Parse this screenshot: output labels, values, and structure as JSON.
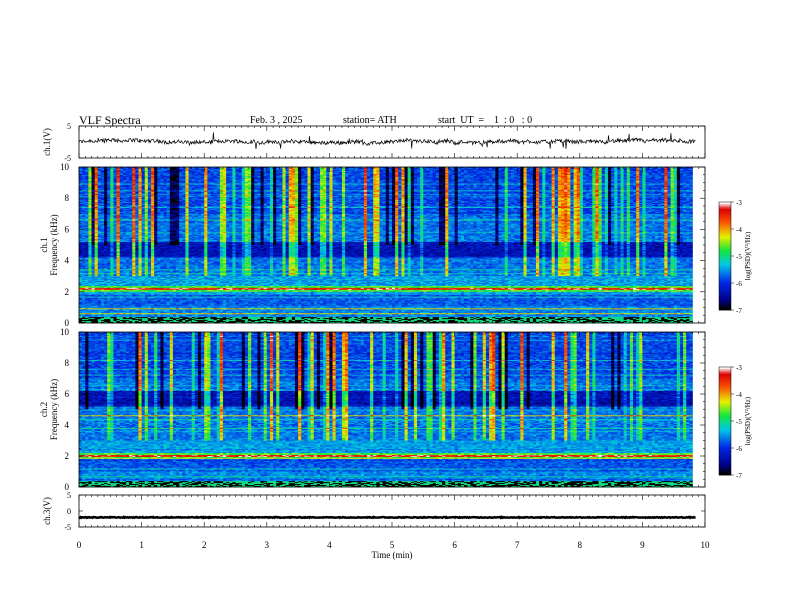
{
  "header": {
    "title": "VLF  Spectra",
    "date": "Feb. 3  , 2025",
    "station": "station= ATH",
    "start": "start  UT  =    1  : 0   : 0"
  },
  "chart_data": [
    {
      "type": "line",
      "name": "ch1-waveform",
      "ylabel": "ch.1(V)",
      "ylim": [
        -5,
        5
      ],
      "y_ticks": [
        "5",
        "-5"
      ],
      "xlim": [
        0,
        10
      ],
      "approx_level": 0,
      "approx_noise_amplitude": 1.2
    },
    {
      "type": "heatmap",
      "name": "ch1-spectrogram",
      "ylabel": "ch.1\nFrequency (kHz)",
      "ylabel_lines": [
        "ch.1",
        "Frequency  (kHz)"
      ],
      "ylim": [
        0,
        10
      ],
      "y_ticks": [
        "0",
        "2",
        "4",
        "6",
        "8",
        "10"
      ],
      "xlim": [
        0,
        9.8
      ],
      "colorbar": {
        "label": "log(PSD)(V²/Hz)",
        "range": [
          -7,
          -3
        ],
        "ticks": [
          "-3",
          "-4",
          "-5",
          "-6",
          "-7"
        ]
      },
      "features": {
        "bright_band_khz": [
          2.0,
          2.4
        ],
        "strong_lines_khz": [
          0.6,
          0.9,
          2.2
        ],
        "dark_band_khz": [
          4.2,
          5.2
        ]
      }
    },
    {
      "type": "heatmap",
      "name": "ch2-spectrogram",
      "ylabel": "ch.2\nFrequency (kHz)",
      "ylabel_lines": [
        "ch.2",
        "Frequency  (kHz)"
      ],
      "ylim": [
        0,
        10
      ],
      "y_ticks": [
        "0",
        "2",
        "4",
        "6",
        "8",
        "10"
      ],
      "xlim": [
        0,
        9.8
      ],
      "colorbar": {
        "label": "log(PSD)(V²/Hz)",
        "range": [
          -7,
          -3
        ],
        "ticks": [
          "-3",
          "-4",
          "-5",
          "-6",
          "-7"
        ]
      },
      "features": {
        "bright_band_khz": [
          1.8,
          2.2
        ],
        "strong_lines_khz": [
          2.0,
          4.6
        ],
        "dark_band_khz": [
          5.2,
          6.2
        ]
      }
    },
    {
      "type": "line",
      "name": "ch3-waveform",
      "ylabel": "ch.3(V)",
      "ylim": [
        -5,
        5
      ],
      "y_ticks": [
        "5",
        "0",
        "-5"
      ],
      "xlim": [
        0,
        10
      ],
      "approx_level": -2
    }
  ],
  "xaxis": {
    "label": "Time  (min)",
    "ticks": [
      "0",
      "1",
      "2",
      "3",
      "4",
      "5",
      "6",
      "7",
      "8",
      "9",
      "10"
    ],
    "range": [
      0,
      10
    ]
  }
}
